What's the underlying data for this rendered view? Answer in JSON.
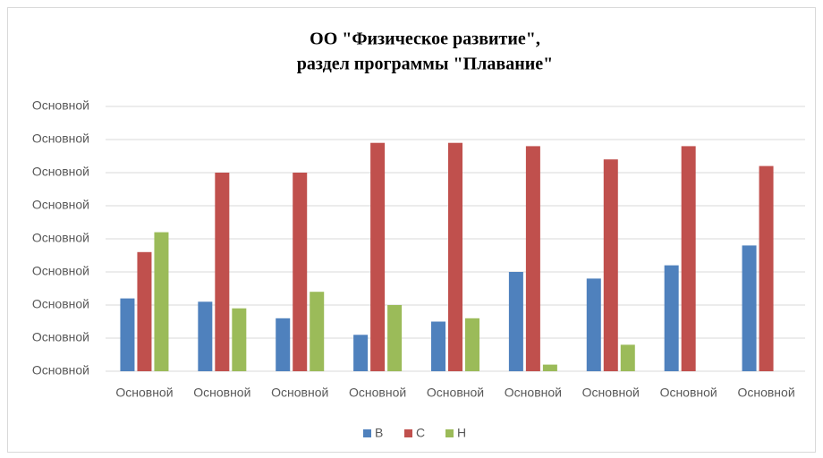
{
  "chart_data": {
    "type": "bar",
    "title": [
      "ОО \"Физическое развитие\",",
      "раздел программы \"Плавание\""
    ],
    "categories": [
      "Основной",
      "Основной",
      "Основной",
      "Основной",
      "Основной",
      "Основной",
      "Основной",
      "Основной",
      "Основной"
    ],
    "series": [
      {
        "name": "В",
        "color": "#4f81bd",
        "values": [
          22,
          21,
          16,
          11,
          15,
          30,
          28,
          32,
          38
        ]
      },
      {
        "name": "С",
        "color": "#c0504d",
        "values": [
          36,
          60,
          60,
          69,
          69,
          68,
          64,
          68,
          62
        ]
      },
      {
        "name": "Н",
        "color": "#9bbb59",
        "values": [
          42,
          19,
          24,
          20,
          16,
          2,
          8,
          0,
          0
        ]
      }
    ],
    "ylim": [
      0,
      80
    ],
    "yticks": [
      {
        "value": 0,
        "label": "Основной"
      },
      {
        "value": 10,
        "label": "Основной"
      },
      {
        "value": 20,
        "label": "Основной"
      },
      {
        "value": 30,
        "label": "Основной"
      },
      {
        "value": 40,
        "label": "Основной"
      },
      {
        "value": 50,
        "label": "Основной"
      },
      {
        "value": 60,
        "label": "Основной"
      },
      {
        "value": 70,
        "label": "Основной"
      },
      {
        "value": 80,
        "label": "Основной"
      }
    ],
    "grid": true,
    "legend": "bottom"
  }
}
